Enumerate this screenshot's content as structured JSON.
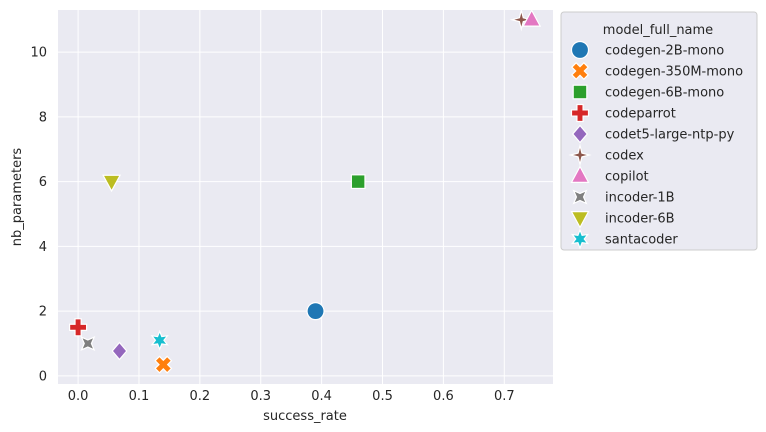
{
  "chart_data": {
    "type": "scatter",
    "xlabel": "success_rate",
    "ylabel": "nb_parameters",
    "xlim": [
      -0.033,
      0.78
    ],
    "ylim": [
      -0.25,
      11.3
    ],
    "xticks": [
      0.0,
      0.1,
      0.2,
      0.3,
      0.4,
      0.5,
      0.6,
      0.7
    ],
    "xtick_labels": [
      "0.0",
      "0.1",
      "0.2",
      "0.3",
      "0.4",
      "0.5",
      "0.6",
      "0.7"
    ],
    "yticks": [
      0,
      2,
      4,
      6,
      8,
      10
    ],
    "ytick_labels": [
      "0",
      "2",
      "4",
      "6",
      "8",
      "10"
    ],
    "grid": true,
    "legend_title": "model_full_name",
    "legend_placement": "outside-right-top",
    "series": [
      {
        "name": "codegen-2B-mono",
        "x": 0.39,
        "y": 2.0,
        "marker": "circle",
        "color": "#1f77b4"
      },
      {
        "name": "codegen-350M-mono",
        "x": 0.14,
        "y": 0.35,
        "marker": "x-filled",
        "color": "#ff7f0e"
      },
      {
        "name": "codegen-6B-mono",
        "x": 0.46,
        "y": 6.0,
        "marker": "square",
        "color": "#2ca02c"
      },
      {
        "name": "codeparrot",
        "x": 0.0,
        "y": 1.5,
        "marker": "plus-filled",
        "color": "#d62728"
      },
      {
        "name": "codet5-large-ntp-py",
        "x": 0.068,
        "y": 0.77,
        "marker": "diamond",
        "color": "#9467bd"
      },
      {
        "name": "codex",
        "x": 0.728,
        "y": 11.0,
        "marker": "star4",
        "color": "#8c564b"
      },
      {
        "name": "copilot",
        "x": 0.745,
        "y": 11.0,
        "marker": "triangle-up",
        "color": "#e377c2"
      },
      {
        "name": "incoder-1B",
        "x": 0.016,
        "y": 1.0,
        "marker": "concave-x",
        "color": "#7f7f7f"
      },
      {
        "name": "incoder-6B",
        "x": 0.055,
        "y": 6.0,
        "marker": "triangle-down",
        "color": "#bcbd22"
      },
      {
        "name": "santacoder",
        "x": 0.134,
        "y": 1.1,
        "marker": "star6",
        "color": "#17becf"
      }
    ]
  },
  "colors": {
    "plot_background": "#eaeaf2",
    "grid": "#ffffff",
    "legend_background": "#eaeaf2",
    "legend_border": "#cccccc"
  }
}
